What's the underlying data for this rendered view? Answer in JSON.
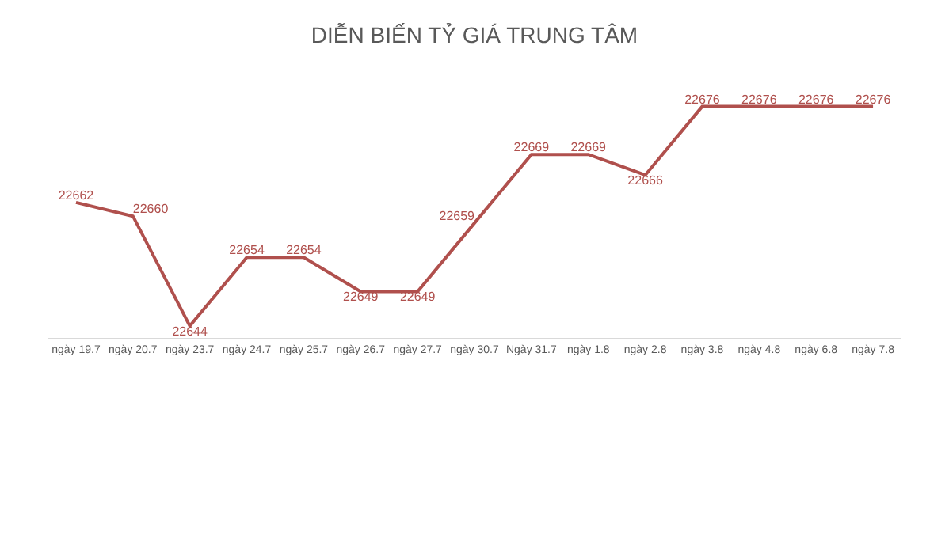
{
  "chart_data": {
    "type": "line",
    "title": "DIỄN BIẾN TỶ GIÁ TRUNG TÂM",
    "categories": [
      "ngày 19.7",
      "ngày 20.7",
      "ngày 23.7",
      "ngày 24.7",
      "ngày 25.7",
      "ngày 26.7",
      "ngày 27.7",
      "ngày 30.7",
      "Ngày 31.7",
      "ngày 1.8",
      "ngày 2.8",
      "ngày 3.8",
      "ngày 4.8",
      "ngày 6.8",
      "ngày 7.8"
    ],
    "series": [
      {
        "color": "#b0504d",
        "values": [
          22662,
          22660,
          22644,
          22654,
          22654,
          22649,
          22649,
          22659,
          22669,
          22669,
          22666,
          22676,
          22676,
          22676,
          22676
        ]
      }
    ],
    "data_labels": true,
    "marker": "none",
    "line_style": "solid"
  }
}
